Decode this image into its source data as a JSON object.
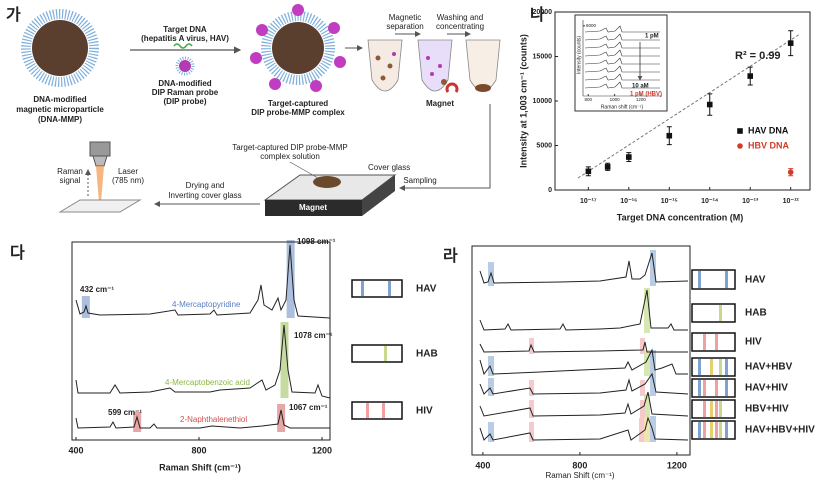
{
  "schematic": {
    "panel_label": "가",
    "mmp_label": [
      "DNA-modified",
      "magnetic microparticle",
      "(DNA-MMP)"
    ],
    "target_label": [
      "Target DNA",
      "(hepatitis A virus, HAV)"
    ],
    "probe_label": [
      "DNA-modified",
      "DIP Raman probe",
      "(DIP probe)"
    ],
    "complex_label": [
      "Target-captured",
      "DIP probe-MMP complex"
    ],
    "separation_label": [
      "Magnetic",
      "separation"
    ],
    "washing_label": [
      "Washing and",
      "concentrating"
    ],
    "magnet_label": "Magnet",
    "solution_label": [
      "Target-captured DIP probe-MMP",
      "complex solution"
    ],
    "cover_glass_label": "Cover glass",
    "sampling_label": "Sampling",
    "slide_magnet_label": "Magnet",
    "drying_label": [
      "Drying and",
      "Inverting cover glass"
    ],
    "raman_signal_label": [
      "Raman",
      "signal"
    ],
    "laser_label": [
      "Laser",
      "(785 nm)"
    ]
  },
  "chart_data": [
    {
      "type": "scatter",
      "panel_label": "나",
      "xlabel": "Target DNA concentration (M)",
      "ylabel": "Intensity at 1,003 cm⁻¹ (counts)",
      "xscale": "log",
      "xlim": [
        1.5e-18,
        3e-12
      ],
      "xticks": [
        {
          "value": 1e-17,
          "label": "10⁻¹⁷"
        },
        {
          "value": 1e-16,
          "label": "10⁻¹⁶"
        },
        {
          "value": 1e-15,
          "label": "10⁻¹⁵"
        },
        {
          "value": 1e-14,
          "label": "10⁻¹⁴"
        },
        {
          "value": 1e-13,
          "label": "10⁻¹³"
        },
        {
          "value": 1e-12,
          "label": "10⁻¹²"
        }
      ],
      "ylim": [
        0,
        20000
      ],
      "yticks": [
        0,
        5000,
        10000,
        15000,
        20000
      ],
      "legend": "center right",
      "series": [
        {
          "name": "HAV DNA",
          "color": "#111111",
          "marker": "square",
          "x": [
            1e-17,
            3e-17,
            1e-16,
            1e-15,
            1e-14,
            1e-13,
            1e-12
          ],
          "values": [
            2100,
            2600,
            3700,
            6100,
            9600,
            12800,
            16500
          ],
          "errors": [
            500,
            400,
            500,
            1000,
            1200,
            1000,
            1400
          ]
        },
        {
          "name": "HBV DNA",
          "color": "#d23b2a",
          "marker": "circle",
          "x": [
            1e-12
          ],
          "values": [
            2000
          ],
          "errors": [
            400
          ]
        }
      ],
      "annotations": [
        "R² = 0.99"
      ],
      "inset": {
        "xlabel": "Raman shift (cm⁻¹)",
        "ylabel": "Intensity (counts)",
        "xlim": [
          760,
          1360
        ],
        "xticks": [
          800,
          1000,
          1200
        ],
        "ylim": [
          0,
          6500
        ],
        "yticks": [
          6000
        ],
        "labels": [
          "1 pM",
          "10 aM",
          "1 pM (HBV)"
        ]
      }
    },
    {
      "type": "spectrum",
      "panel_label": "다",
      "xlabel": "Raman Shift (cm⁻¹)",
      "xlim": [
        387,
        1226
      ],
      "xticks": [
        400,
        800,
        1200
      ],
      "traces": [
        {
          "name": "4-Mercaptopyridine",
          "color": "#5a7fbf",
          "peaks": [
            {
              "value": 432,
              "label": "432 cm⁻¹"
            },
            {
              "value": 1098,
              "label": "1098 cm⁻¹"
            }
          ]
        },
        {
          "name": "4-Mercaptobenzoic acid",
          "color": "#8db83f",
          "peaks": [
            {
              "value": 1078,
              "label": "1078 cm⁻¹"
            }
          ]
        },
        {
          "name": "2-Naphthalenethiol",
          "color": "#d0504d",
          "peaks": [
            {
              "value": 599,
              "label": "599 cm⁻¹"
            },
            {
              "value": 1067,
              "label": "1067 cm⁻¹"
            }
          ]
        }
      ],
      "codes": [
        "HAV",
        "HAB",
        "HIV"
      ]
    },
    {
      "type": "spectrum",
      "panel_label": "라",
      "xlabel": "Raman Shift (cm⁻¹)",
      "xlim": [
        355,
        1254
      ],
      "xticks": [
        400,
        800,
        1200
      ],
      "codes": [
        "HAV",
        "HAB",
        "HIV",
        "HAV+HBV",
        "HAV+HIV",
        "HBV+HIV",
        "HAV+HBV+HIV"
      ]
    }
  ]
}
